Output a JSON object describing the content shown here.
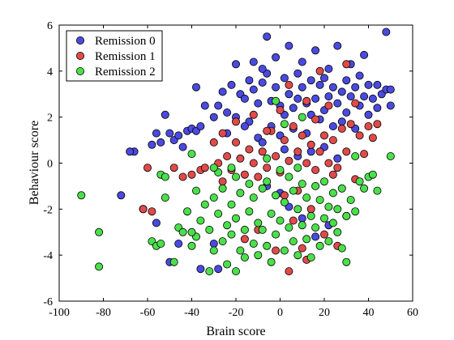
{
  "chart_data": {
    "type": "scatter",
    "title": "",
    "xlabel": "Brain score",
    "ylabel": "Behaviour score",
    "xlim": [
      -100,
      60
    ],
    "ylim": [
      -6,
      6
    ],
    "x_ticks": [
      -100,
      -80,
      -60,
      -40,
      -20,
      0,
      20,
      40,
      60
    ],
    "x_tick_labels": [
      "-100",
      "-80",
      "-60",
      "-40",
      "-20",
      "0",
      "20",
      "40",
      "60"
    ],
    "y_ticks": [
      -6,
      -4,
      -2,
      0,
      2,
      4,
      6
    ],
    "y_tick_labels": [
      "-6",
      "-4",
      "-2",
      "0",
      "2",
      "4",
      "6"
    ],
    "grid": false,
    "legend_position": "top-left",
    "series": [
      {
        "name": "Remission 0",
        "color": "#4a4ae0",
        "points": [
          [
            -66,
            0.5
          ],
          [
            -68,
            0.5
          ],
          [
            -58,
            0.8
          ],
          [
            -56,
            1.3
          ],
          [
            -54,
            0.9
          ],
          [
            -52,
            2.1
          ],
          [
            -50,
            1.3
          ],
          [
            -48,
            1.0
          ],
          [
            -46,
            1.2
          ],
          [
            -44,
            0.7
          ],
          [
            -42,
            1.4
          ],
          [
            -40,
            1.5
          ],
          [
            -38,
            3.3
          ],
          [
            -38,
            1.4
          ],
          [
            -36,
            1.6
          ],
          [
            -34,
            2.5
          ],
          [
            -30,
            2.0
          ],
          [
            -28,
            2.5
          ],
          [
            -26,
            3.1
          ],
          [
            -24,
            2.2
          ],
          [
            -22,
            3.4
          ],
          [
            -20,
            4.3
          ],
          [
            -18,
            3.0
          ],
          [
            -16,
            2.8
          ],
          [
            -14,
            3.6
          ],
          [
            -14,
            1.8
          ],
          [
            -12,
            3.2
          ],
          [
            -10,
            2.6
          ],
          [
            -10,
            1.1
          ],
          [
            -8,
            3.5
          ],
          [
            -8,
            0.9
          ],
          [
            -6,
            5.5
          ],
          [
            -6,
            3.9
          ],
          [
            -4,
            2.7
          ],
          [
            -4,
            1.6
          ],
          [
            -2,
            3.3
          ],
          [
            -2,
            4.6
          ],
          [
            0,
            2.5
          ],
          [
            0,
            1.2
          ],
          [
            2,
            3.7
          ],
          [
            2,
            2.1
          ],
          [
            4,
            3.0
          ],
          [
            4,
            5.1
          ],
          [
            6,
            2.4
          ],
          [
            6,
            1.5
          ],
          [
            8,
            3.9
          ],
          [
            8,
            2.8
          ],
          [
            10,
            3.3
          ],
          [
            10,
            4.4
          ],
          [
            12,
            2.6
          ],
          [
            12,
            1.3
          ],
          [
            14,
            3.6
          ],
          [
            14,
            2.1
          ],
          [
            16,
            2.8
          ],
          [
            16,
            4.9
          ],
          [
            18,
            3.4
          ],
          [
            18,
            1.9
          ],
          [
            20,
            3.7
          ],
          [
            20,
            2.3
          ],
          [
            22,
            2.9
          ],
          [
            22,
            4.1
          ],
          [
            24,
            3.3
          ],
          [
            24,
            1.6
          ],
          [
            26,
            2.6
          ],
          [
            26,
            5.1
          ],
          [
            28,
            3.1
          ],
          [
            28,
            1.8
          ],
          [
            30,
            3.6
          ],
          [
            30,
            2.2
          ],
          [
            32,
            4.3
          ],
          [
            32,
            2.9
          ],
          [
            34,
            3.3
          ],
          [
            34,
            1.5
          ],
          [
            36,
            3.8
          ],
          [
            36,
            2.5
          ],
          [
            38,
            2.9
          ],
          [
            38,
            4.7
          ],
          [
            40,
            3.4
          ],
          [
            40,
            2.1
          ],
          [
            42,
            2.8
          ],
          [
            44,
            3.4
          ],
          [
            44,
            2.4
          ],
          [
            46,
            3.0
          ],
          [
            48,
            5.7
          ],
          [
            48,
            3.2
          ],
          [
            50,
            2.5
          ],
          [
            50,
            3.2
          ],
          [
            -8,
            4.1
          ],
          [
            -12,
            4.4
          ],
          [
            -16,
            1.6
          ],
          [
            -20,
            2.0
          ],
          [
            -24,
            1.3
          ],
          [
            2,
            0.6
          ],
          [
            8,
            0.3
          ],
          [
            14,
            0.5
          ],
          [
            20,
            0.7
          ],
          [
            26,
            0.2
          ],
          [
            -36,
            -4.6
          ],
          [
            -56,
            -2.6
          ],
          [
            -62,
            -2.0
          ],
          [
            -72,
            -1.4
          ],
          [
            -46,
            -3.5
          ],
          [
            -28,
            -4.6
          ],
          [
            -50,
            -4.3
          ],
          [
            -30,
            -3.5
          ],
          [
            -6,
            -1.0
          ],
          [
            0,
            -1.3
          ],
          [
            4,
            -1.9
          ],
          [
            10,
            -2.4
          ],
          [
            16,
            -3.2
          ],
          [
            22,
            -2.7
          ]
        ]
      },
      {
        "name": "Remission 1",
        "color": "#e04a4a",
        "points": [
          [
            -62,
            -2.0
          ],
          [
            -60,
            -0.2
          ],
          [
            -48,
            -0.2
          ],
          [
            -44,
            -0.6
          ],
          [
            -40,
            -0.5
          ],
          [
            -36,
            -0.3
          ],
          [
            -34,
            -0.2
          ],
          [
            -30,
            0.9
          ],
          [
            -28,
            0.0
          ],
          [
            -26,
            -0.8
          ],
          [
            -24,
            0.3
          ],
          [
            -22,
            -0.3
          ],
          [
            -20,
            0.9
          ],
          [
            -18,
            0.2
          ],
          [
            -16,
            -0.5
          ],
          [
            -14,
            0.6
          ],
          [
            -12,
            0.0
          ],
          [
            -10,
            -0.6
          ],
          [
            -8,
            0.5
          ],
          [
            -6,
            -0.2
          ],
          [
            -4,
            1.4
          ],
          [
            -2,
            0.3
          ],
          [
            0,
            -0.4
          ],
          [
            0,
            2.3
          ],
          [
            2,
            1.0
          ],
          [
            4,
            0.1
          ],
          [
            4,
            3.4
          ],
          [
            6,
            1.6
          ],
          [
            8,
            0.5
          ],
          [
            8,
            -1.2
          ],
          [
            10,
            1.2
          ],
          [
            12,
            0.0
          ],
          [
            12,
            2.7
          ],
          [
            14,
            0.8
          ],
          [
            16,
            -0.3
          ],
          [
            16,
            1.9
          ],
          [
            18,
            0.5
          ],
          [
            18,
            4.0
          ],
          [
            20,
            1.2
          ],
          [
            22,
            0.0
          ],
          [
            22,
            2.5
          ],
          [
            24,
            1.0
          ],
          [
            26,
            -0.2
          ],
          [
            28,
            1.5
          ],
          [
            30,
            4.3
          ],
          [
            30,
            0.5
          ],
          [
            32,
            1.7
          ],
          [
            34,
            2.6
          ],
          [
            36,
            1.2
          ],
          [
            38,
            0.4
          ],
          [
            40,
            1.6
          ],
          [
            42,
            1.1
          ],
          [
            44,
            1.7
          ],
          [
            -58,
            -2.1
          ],
          [
            -26,
            1.3
          ],
          [
            -20,
            1.8
          ],
          [
            -12,
            2.1
          ],
          [
            -6,
            1.4
          ],
          [
            2,
            -1.4
          ],
          [
            6,
            -2.5
          ],
          [
            10,
            -3.7
          ],
          [
            14,
            -2.0
          ],
          [
            20,
            -3.1
          ],
          [
            26,
            -3.6
          ],
          [
            30,
            -2.3
          ],
          [
            -2,
            -3.8
          ],
          [
            4,
            -4.7
          ],
          [
            12,
            -4.2
          ],
          [
            -10,
            -2.9
          ],
          [
            -16,
            -3.3
          ],
          [
            24,
            -0.5
          ],
          [
            34,
            -0.7
          ]
        ]
      },
      {
        "name": "Remission 2",
        "color": "#4ae04a",
        "points": [
          [
            -90,
            -1.4
          ],
          [
            -82,
            -3.0
          ],
          [
            -82,
            -4.5
          ],
          [
            -58,
            -3.4
          ],
          [
            -56,
            -3.6
          ],
          [
            -54,
            -3.5
          ],
          [
            -54,
            -0.5
          ],
          [
            -52,
            -0.6
          ],
          [
            -52,
            -1.5
          ],
          [
            -48,
            -4.3
          ],
          [
            -46,
            -2.8
          ],
          [
            -44,
            -3.0
          ],
          [
            -42,
            -2.1
          ],
          [
            -40,
            0.4
          ],
          [
            -40,
            -3.6
          ],
          [
            -38,
            -3.2
          ],
          [
            -38,
            -1.2
          ],
          [
            -36,
            -2.5
          ],
          [
            -34,
            -1.8
          ],
          [
            -32,
            -4.7
          ],
          [
            -32,
            -2.9
          ],
          [
            -30,
            -1.5
          ],
          [
            -30,
            -3.8
          ],
          [
            -28,
            -0.4
          ],
          [
            -28,
            -2.2
          ],
          [
            -26,
            -3.4
          ],
          [
            -26,
            -1.1
          ],
          [
            -24,
            -2.7
          ],
          [
            -24,
            -4.4
          ],
          [
            -22,
            -1.8
          ],
          [
            -22,
            -3.1
          ],
          [
            -20,
            -0.6
          ],
          [
            -20,
            -2.4
          ],
          [
            -18,
            -3.8
          ],
          [
            -18,
            -1.3
          ],
          [
            -16,
            -2.9
          ],
          [
            -16,
            -4.1
          ],
          [
            -14,
            -0.9
          ],
          [
            -14,
            -2.1
          ],
          [
            -12,
            -3.5
          ],
          [
            -12,
            -1.5
          ],
          [
            -10,
            -2.6
          ],
          [
            -10,
            -4.0
          ],
          [
            -8,
            -1.1
          ],
          [
            -8,
            -2.9
          ],
          [
            -6,
            -3.6
          ],
          [
            -6,
            -0.8
          ],
          [
            -4,
            -2.2
          ],
          [
            -4,
            -4.3
          ],
          [
            -2,
            -1.4
          ],
          [
            -2,
            -3.1
          ],
          [
            0,
            -2.5
          ],
          [
            0,
            -0.3
          ],
          [
            2,
            -1.7
          ],
          [
            2,
            -3.8
          ],
          [
            4,
            -2.8
          ],
          [
            4,
            -0.6
          ],
          [
            6,
            -1.2
          ],
          [
            6,
            -3.4
          ],
          [
            8,
            -2.0
          ],
          [
            8,
            -4.0
          ],
          [
            10,
            -0.9
          ],
          [
            10,
            -2.7
          ],
          [
            12,
            -1.5
          ],
          [
            12,
            -3.3
          ],
          [
            14,
            -2.3
          ],
          [
            14,
            -4.1
          ],
          [
            16,
            -1.0
          ],
          [
            16,
            -2.8
          ],
          [
            18,
            -3.6
          ],
          [
            18,
            -1.6
          ],
          [
            20,
            -2.4
          ],
          [
            20,
            -0.8
          ],
          [
            22,
            -1.9
          ],
          [
            22,
            -3.4
          ],
          [
            24,
            -2.6
          ],
          [
            24,
            -1.3
          ],
          [
            26,
            -3.0
          ],
          [
            26,
            -2.0
          ],
          [
            28,
            -1.1
          ],
          [
            28,
            -3.7
          ],
          [
            30,
            -2.3
          ],
          [
            30,
            -4.3
          ],
          [
            32,
            -1.6
          ],
          [
            34,
            -2.1
          ],
          [
            36,
            -0.8
          ],
          [
            38,
            -1.1
          ],
          [
            40,
            -0.6
          ],
          [
            42,
            -0.5
          ],
          [
            44,
            -1.2
          ],
          [
            50,
            0.3
          ],
          [
            -20,
            -4.7
          ],
          [
            -2,
            2.7
          ],
          [
            2,
            1.7
          ],
          [
            8,
            -0.2
          ],
          [
            10,
            2.0
          ],
          [
            -6,
            0.2
          ],
          [
            -22,
            -0.2
          ],
          [
            -30,
            -0.2
          ],
          [
            -40,
            -3.0
          ],
          [
            34,
            0.3
          ]
        ]
      }
    ]
  }
}
